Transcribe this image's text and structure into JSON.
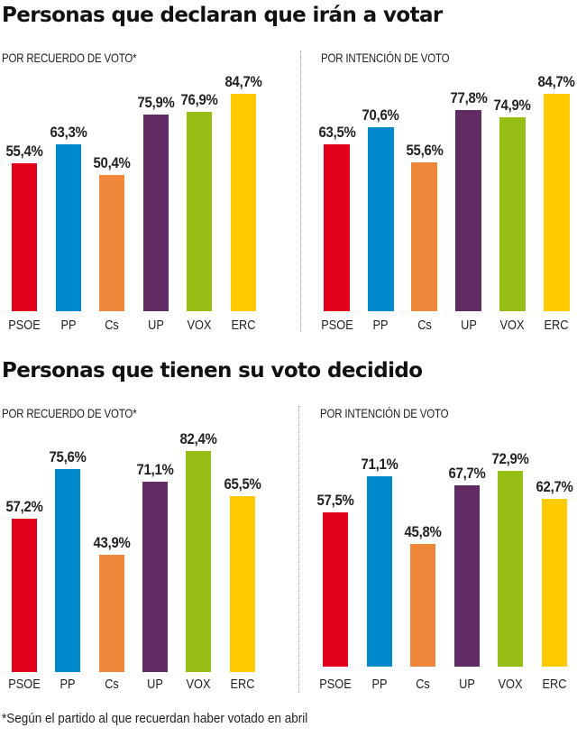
{
  "chart_data": [
    {
      "type": "bar",
      "title": "Personas que declaran que irán a votar",
      "subtitle": "POR RECUERDO DE VOTO*",
      "categories": [
        "PSOE",
        "PP",
        "Cs",
        "UP",
        "VOX",
        "ERC"
      ],
      "values": [
        55.4,
        63.3,
        50.4,
        75.9,
        76.9,
        84.7
      ],
      "labels": [
        "55,4%",
        "63,3%",
        "50,4%",
        "75,9%",
        "76,9%",
        "84,7%"
      ],
      "xlabel": "",
      "ylabel": "",
      "grid": false
    },
    {
      "type": "bar",
      "title": "Personas que declaran que irán a votar",
      "subtitle": "POR INTENCIÓN DE VOTO",
      "categories": [
        "PSOE",
        "PP",
        "Cs",
        "UP",
        "VOX",
        "ERC"
      ],
      "values": [
        63.5,
        70.6,
        55.6,
        77.8,
        74.9,
        84.7
      ],
      "labels": [
        "63,5%",
        "70,6%",
        "55,6%",
        "77,8%",
        "74,9%",
        "84,7%"
      ],
      "xlabel": "",
      "ylabel": "",
      "grid": false
    },
    {
      "type": "bar",
      "title": "Personas que tienen su voto decidido",
      "subtitle": "POR RECUERDO DE VOTO*",
      "categories": [
        "PSOE",
        "PP",
        "Cs",
        "UP",
        "VOX",
        "ERC"
      ],
      "values": [
        57.2,
        75.6,
        43.9,
        71.1,
        82.4,
        65.5
      ],
      "labels": [
        "57,2%",
        "75,6%",
        "43,9%",
        "71,1%",
        "82,4%",
        "65,5%"
      ],
      "xlabel": "",
      "ylabel": "",
      "grid": false
    },
    {
      "type": "bar",
      "title": "Personas que tienen su voto decidido",
      "subtitle": "POR INTENCIÓN DE VOTO",
      "categories": [
        "PSOE",
        "PP",
        "Cs",
        "UP",
        "VOX",
        "ERC"
      ],
      "values": [
        57.5,
        71.1,
        45.8,
        67.7,
        72.9,
        62.7
      ],
      "labels": [
        "57,5%",
        "71,1%",
        "45,8%",
        "67,7%",
        "72,9%",
        "62,7%"
      ],
      "xlabel": "",
      "ylabel": "",
      "grid": false
    }
  ],
  "sections": {
    "top_title": "Personas que declaran que irán a votar",
    "bottom_title": "Personas que tienen su voto decidido",
    "left_subtitle": "POR RECUERDO DE VOTO*",
    "right_subtitle": "POR INTENCIÓN DE VOTO"
  },
  "party_colors": {
    "PSOE": "#e2001a",
    "PP": "#0088cc",
    "Cs": "#ee873a",
    "UP": "#612c63",
    "VOX": "#97be14",
    "ERC": "#ffcb00"
  },
  "footnote": "*Según el partido al que recuerdan haber votado en abril"
}
